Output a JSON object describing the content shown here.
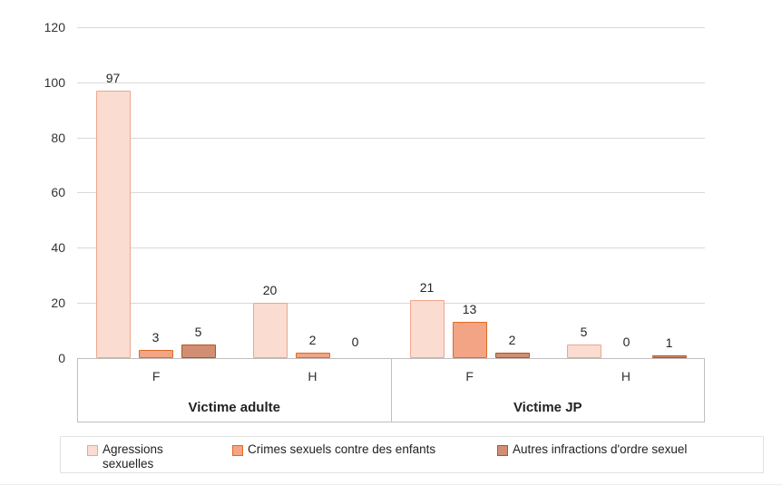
{
  "chart_data": {
    "type": "bar",
    "title": "",
    "y_axis": {
      "min": 0,
      "max": 120,
      "step": 20,
      "ticks": [
        0,
        20,
        40,
        60,
        80,
        100,
        120
      ]
    },
    "grid": "horizontal",
    "legend_position": "bottom",
    "series": [
      {
        "name": "Agressions sexuelles",
        "fill": "#fadcd1",
        "border": "#eda78c"
      },
      {
        "name": "Crimes sexuels contre des enfants",
        "fill": "#f3a484",
        "border": "#e06a24"
      },
      {
        "name": "Autres infractions d'ordre sexuel",
        "fill": "#d28e72",
        "border": "#b5521f"
      }
    ],
    "groups": [
      {
        "label": "Victime adulte",
        "subgroups": [
          {
            "label": "F",
            "values": [
              97,
              3,
              5
            ]
          },
          {
            "label": "H",
            "values": [
              20,
              2,
              0
            ]
          }
        ]
      },
      {
        "label": "Victime JP",
        "subgroups": [
          {
            "label": "F",
            "values": [
              21,
              13,
              2
            ]
          },
          {
            "label": "H",
            "values": [
              5,
              0,
              1
            ]
          }
        ]
      }
    ]
  }
}
